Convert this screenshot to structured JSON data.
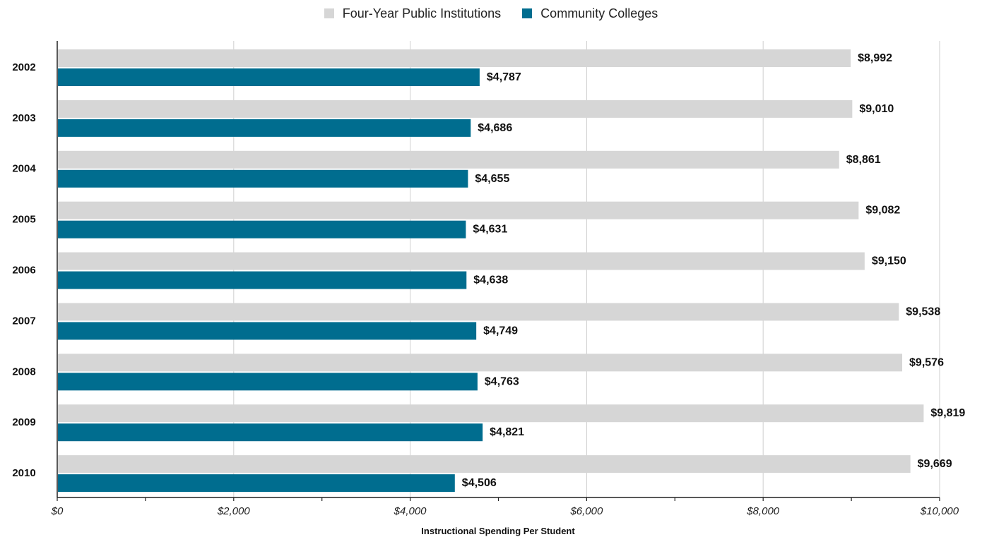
{
  "chart_data": {
    "type": "bar",
    "orientation": "horizontal",
    "categories": [
      "2002",
      "2003",
      "2004",
      "2005",
      "2006",
      "2007",
      "2008",
      "2009",
      "2010"
    ],
    "series": [
      {
        "name": "Four-Year Public Institutions",
        "color": "#d6d6d6",
        "values": [
          8992,
          9010,
          8861,
          9082,
          9150,
          9538,
          9576,
          9819,
          9669
        ],
        "labels": [
          "$8,992",
          "$9,010",
          "$8,861",
          "$9,082",
          "$9,150",
          "$9,538",
          "$9,576",
          "$9,819",
          "$9,669"
        ]
      },
      {
        "name": "Community Colleges",
        "color": "#006d8f",
        "values": [
          4787,
          4686,
          4655,
          4631,
          4638,
          4749,
          4763,
          4821,
          4506
        ],
        "labels": [
          "$4,787",
          "$4,686",
          "$4,655",
          "$4,631",
          "$4,638",
          "$4,749",
          "$4,763",
          "$4,821",
          "$4,506"
        ]
      }
    ],
    "xlabel": "Instructional Spending Per Student",
    "ylabel": "",
    "xlim": [
      0,
      10000
    ],
    "x_ticks": [
      0,
      2000,
      4000,
      6000,
      8000,
      10000
    ],
    "x_tick_labels": [
      "$0",
      "$2,000",
      "$4,000",
      "$6,000",
      "$8,000",
      "$10,000"
    ],
    "grid": true,
    "legend_position": "top-center"
  }
}
